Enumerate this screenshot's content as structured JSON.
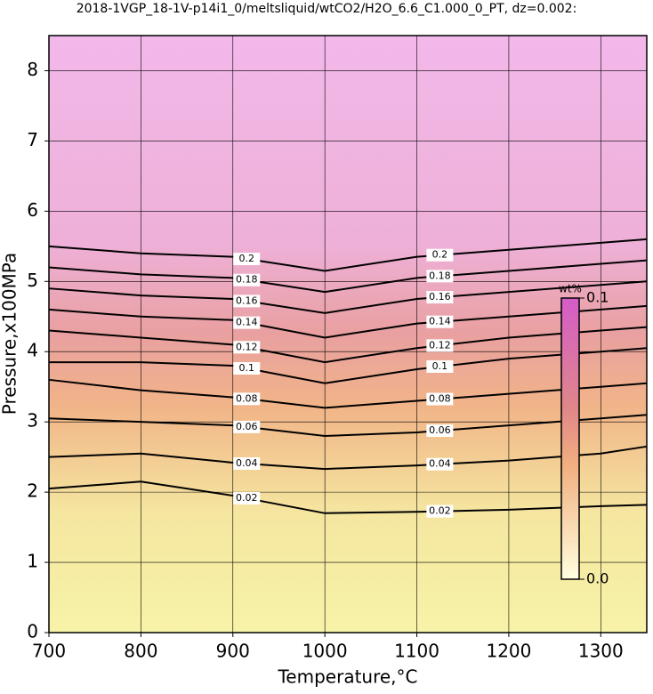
{
  "chart_data": {
    "type": "contour",
    "title": "2018-1VGP_18-1V-p14i1_0/meltsliquid/wtCO2/H2O_6.6_C1.000_0_PT, dz=0.002:",
    "x_label": "Temperature,°C",
    "y_label": "Pressure,x100MPa",
    "xlim": [
      700,
      1350
    ],
    "ylim": [
      0,
      8.5
    ],
    "xticks": [
      700,
      800,
      900,
      1000,
      1100,
      1200,
      1300
    ],
    "yticks": [
      0,
      1,
      2,
      3,
      4,
      5,
      6,
      7,
      8
    ],
    "grid": true,
    "x": [
      700,
      800,
      900,
      1000,
      1100,
      1200,
      1300,
      1350
    ],
    "series": [
      {
        "name": "0.02",
        "color": "#000000",
        "values": [
          2.05,
          2.15,
          1.95,
          1.7,
          1.72,
          1.75,
          1.8,
          1.82
        ]
      },
      {
        "name": "0.04",
        "color": "#000000",
        "values": [
          2.5,
          2.55,
          2.42,
          2.33,
          2.38,
          2.45,
          2.55,
          2.65
        ]
      },
      {
        "name": "0.06",
        "color": "#000000",
        "values": [
          3.05,
          3.0,
          2.95,
          2.8,
          2.85,
          2.95,
          3.05,
          3.1
        ]
      },
      {
        "name": "0.08",
        "color": "#000000",
        "values": [
          3.6,
          3.45,
          3.35,
          3.2,
          3.3,
          3.4,
          3.5,
          3.55
        ]
      },
      {
        "name": "0.1",
        "color": "#000000",
        "values": [
          3.85,
          3.85,
          3.8,
          3.55,
          3.75,
          3.9,
          4.0,
          4.05
        ]
      },
      {
        "name": "0.12",
        "color": "#000000",
        "values": [
          4.3,
          4.2,
          4.1,
          3.85,
          4.05,
          4.2,
          4.3,
          4.35
        ]
      },
      {
        "name": "0.14",
        "color": "#000000",
        "values": [
          4.6,
          4.5,
          4.45,
          4.2,
          4.4,
          4.5,
          4.6,
          4.65
        ]
      },
      {
        "name": "0.16",
        "color": "#000000",
        "values": [
          4.9,
          4.8,
          4.75,
          4.55,
          4.75,
          4.85,
          4.95,
          5.0
        ]
      },
      {
        "name": "0.18",
        "color": "#000000",
        "values": [
          5.2,
          5.1,
          5.05,
          4.85,
          5.05,
          5.15,
          5.25,
          5.3
        ]
      },
      {
        "name": "0.2",
        "color": "#000000",
        "values": [
          5.5,
          5.4,
          5.35,
          5.15,
          5.35,
          5.45,
          5.55,
          5.6
        ]
      }
    ],
    "colorbar": {
      "label": "wt%",
      "lim": [
        0,
        0.1
      ],
      "ticks": [
        {
          "value": 0,
          "label": "0.0"
        },
        0.1
      ]
    }
  }
}
